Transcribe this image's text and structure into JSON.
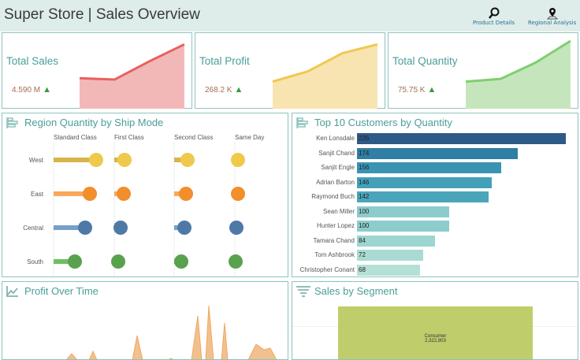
{
  "header": {
    "title": "Super Store | Sales Overview",
    "nav": [
      {
        "label": "Product Details",
        "icon": "magnifier-icon"
      },
      {
        "label": "Regional Analysis",
        "icon": "map-pin-icon"
      }
    ]
  },
  "kpis": [
    {
      "label": "Total Sales",
      "value": "4.590 M",
      "trend": "up",
      "color": "#e8605f",
      "fill": "#f2b8b8",
      "spark": [
        0.45,
        0.43,
        0.7,
        0.95
      ]
    },
    {
      "label": "Total Profit",
      "value": "268.2 K",
      "trend": "up",
      "color": "#f0c84e",
      "fill": "#f8e4b0",
      "spark": [
        0.4,
        0.55,
        0.82,
        0.95
      ]
    },
    {
      "label": "Total Quantity",
      "value": "75.75 K",
      "trend": "up",
      "color": "#7fcf6f",
      "fill": "#c5e6bc",
      "spark": [
        0.4,
        0.44,
        0.68,
        1.0
      ]
    }
  ],
  "region": {
    "title": "Region Quantity by Ship Mode",
    "columns": [
      "Standard Class",
      "First Class",
      "Second Class",
      "Same Day"
    ],
    "rows": [
      {
        "name": "West",
        "color": "#efc94c",
        "bar": "#d8b44a",
        "values": [
          54,
          13,
          17,
          4
        ]
      },
      {
        "name": "East",
        "color": "#f28e2b",
        "bar": "#f9a85a",
        "values": [
          46,
          12,
          15,
          4
        ]
      },
      {
        "name": "Central",
        "color": "#4e79a7",
        "bar": "#76a0c8",
        "values": [
          40,
          8,
          13,
          2
        ]
      },
      {
        "name": "South",
        "color": "#59a14f",
        "bar": "#6fbf62",
        "values": [
          27,
          5,
          9,
          1
        ]
      }
    ]
  },
  "customers": {
    "title": "Top 10 Customers by Quantity",
    "items": [
      {
        "name": "Ken Lonsdale",
        "value": 226,
        "color": "#2e5a87"
      },
      {
        "name": "Sanjit Chand",
        "value": 174,
        "color": "#2f7ea3"
      },
      {
        "name": "Sanjit Engle",
        "value": 156,
        "color": "#3a93b2"
      },
      {
        "name": "Adrian Barton",
        "value": 146,
        "color": "#44a0b8"
      },
      {
        "name": "Raymond Buch",
        "value": 142,
        "color": "#4aa5bb"
      },
      {
        "name": "Sean Miller",
        "value": 100,
        "color": "#8ccccc"
      },
      {
        "name": "Hunter Lopez",
        "value": 100,
        "color": "#8ccccc"
      },
      {
        "name": "Tamara Chand",
        "value": 84,
        "color": "#9dd5d0"
      },
      {
        "name": "Tom Ashbrook",
        "value": 72,
        "color": "#a9dbd3"
      },
      {
        "name": "Christopher Conant",
        "value": 68,
        "color": "#b5e0d6"
      }
    ]
  },
  "profit": {
    "title": "Profit Over Time",
    "color": "#f0a860",
    "fill": "#f2c08e"
  },
  "segment": {
    "title": "Sales by Segment",
    "label": "Consumer",
    "value": "2,322,803",
    "color": "#bfce6a"
  }
}
